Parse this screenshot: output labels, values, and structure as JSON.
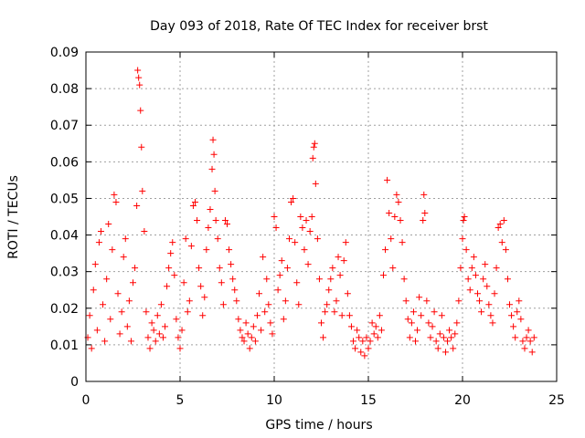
{
  "chart_data": {
    "type": "scatter",
    "title": "Day 093 of 2018, Rate Of TEC Index for receiver brst",
    "xlabel": "GPS time / hours",
    "ylabel": "ROTI / TECUs",
    "xlim": [
      0,
      25
    ],
    "ylim": [
      0,
      0.09
    ],
    "x_ticks": [
      0,
      5,
      10,
      15,
      20,
      25
    ],
    "y_ticks": [
      0,
      0.01,
      0.02,
      0.03,
      0.04,
      0.05,
      0.06,
      0.07,
      0.08,
      0.09
    ],
    "x_tick_labels": [
      "0",
      "5",
      "10",
      "15",
      "20",
      "25"
    ],
    "y_tick_labels": [
      "0",
      "0.01",
      "0.02",
      "0.03",
      "0.04",
      "0.05",
      "0.06",
      "0.07",
      "0.08",
      "0.09"
    ],
    "grid": true,
    "marker": "+",
    "series": [
      {
        "name": "ROTI",
        "color": "#ff0000",
        "points": [
          [
            0.1,
            0.012
          ],
          [
            0.2,
            0.018
          ],
          [
            0.3,
            0.009
          ],
          [
            0.4,
            0.025
          ],
          [
            0.5,
            0.032
          ],
          [
            0.6,
            0.014
          ],
          [
            0.7,
            0.038
          ],
          [
            0.8,
            0.041
          ],
          [
            0.9,
            0.021
          ],
          [
            1.0,
            0.011
          ],
          [
            1.1,
            0.028
          ],
          [
            1.2,
            0.043
          ],
          [
            1.3,
            0.017
          ],
          [
            1.4,
            0.036
          ],
          [
            1.5,
            0.051
          ],
          [
            1.6,
            0.049
          ],
          [
            1.7,
            0.024
          ],
          [
            1.8,
            0.013
          ],
          [
            1.9,
            0.019
          ],
          [
            2.0,
            0.034
          ],
          [
            2.1,
            0.039
          ],
          [
            2.2,
            0.015
          ],
          [
            2.3,
            0.022
          ],
          [
            2.4,
            0.011
          ],
          [
            2.5,
            0.027
          ],
          [
            2.6,
            0.031
          ],
          [
            2.7,
            0.048
          ],
          [
            2.75,
            0.085
          ],
          [
            2.8,
            0.083
          ],
          [
            2.85,
            0.081
          ],
          [
            2.9,
            0.074
          ],
          [
            2.95,
            0.064
          ],
          [
            3.0,
            0.052
          ],
          [
            3.1,
            0.041
          ],
          [
            3.2,
            0.019
          ],
          [
            3.3,
            0.012
          ],
          [
            3.4,
            0.009
          ],
          [
            3.5,
            0.016
          ],
          [
            3.6,
            0.014
          ],
          [
            3.7,
            0.011
          ],
          [
            3.8,
            0.018
          ],
          [
            3.9,
            0.013
          ],
          [
            4.0,
            0.021
          ],
          [
            4.1,
            0.012
          ],
          [
            4.2,
            0.015
          ],
          [
            4.3,
            0.026
          ],
          [
            4.4,
            0.031
          ],
          [
            4.5,
            0.035
          ],
          [
            4.6,
            0.038
          ],
          [
            4.7,
            0.029
          ],
          [
            4.8,
            0.017
          ],
          [
            4.9,
            0.012
          ],
          [
            5.0,
            0.009
          ],
          [
            5.1,
            0.014
          ],
          [
            5.2,
            0.027
          ],
          [
            5.3,
            0.039
          ],
          [
            5.4,
            0.019
          ],
          [
            5.5,
            0.022
          ],
          [
            5.6,
            0.037
          ],
          [
            5.7,
            0.048
          ],
          [
            5.8,
            0.049
          ],
          [
            5.9,
            0.044
          ],
          [
            6.0,
            0.031
          ],
          [
            6.1,
            0.026
          ],
          [
            6.2,
            0.018
          ],
          [
            6.3,
            0.023
          ],
          [
            6.4,
            0.036
          ],
          [
            6.5,
            0.042
          ],
          [
            6.6,
            0.047
          ],
          [
            6.7,
            0.058
          ],
          [
            6.75,
            0.066
          ],
          [
            6.8,
            0.062
          ],
          [
            6.85,
            0.052
          ],
          [
            6.9,
            0.044
          ],
          [
            7.0,
            0.039
          ],
          [
            7.1,
            0.031
          ],
          [
            7.2,
            0.027
          ],
          [
            7.3,
            0.021
          ],
          [
            7.4,
            0.044
          ],
          [
            7.5,
            0.043
          ],
          [
            7.6,
            0.036
          ],
          [
            7.7,
            0.032
          ],
          [
            7.8,
            0.028
          ],
          [
            7.9,
            0.025
          ],
          [
            8.0,
            0.022
          ],
          [
            8.1,
            0.017
          ],
          [
            8.2,
            0.014
          ],
          [
            8.3,
            0.012
          ],
          [
            8.4,
            0.011
          ],
          [
            8.5,
            0.016
          ],
          [
            8.6,
            0.013
          ],
          [
            8.7,
            0.009
          ],
          [
            8.8,
            0.012
          ],
          [
            8.9,
            0.015
          ],
          [
            9.0,
            0.011
          ],
          [
            9.1,
            0.018
          ],
          [
            9.2,
            0.024
          ],
          [
            9.3,
            0.014
          ],
          [
            9.4,
            0.034
          ],
          [
            9.5,
            0.019
          ],
          [
            9.6,
            0.028
          ],
          [
            9.7,
            0.021
          ],
          [
            9.8,
            0.016
          ],
          [
            9.9,
            0.013
          ],
          [
            10.0,
            0.045
          ],
          [
            10.1,
            0.042
          ],
          [
            10.2,
            0.025
          ],
          [
            10.3,
            0.029
          ],
          [
            10.4,
            0.033
          ],
          [
            10.5,
            0.017
          ],
          [
            10.6,
            0.022
          ],
          [
            10.7,
            0.031
          ],
          [
            10.8,
            0.039
          ],
          [
            10.9,
            0.049
          ],
          [
            11.0,
            0.05
          ],
          [
            11.1,
            0.038
          ],
          [
            11.2,
            0.027
          ],
          [
            11.3,
            0.021
          ],
          [
            11.4,
            0.045
          ],
          [
            11.5,
            0.042
          ],
          [
            11.6,
            0.036
          ],
          [
            11.7,
            0.044
          ],
          [
            11.8,
            0.032
          ],
          [
            11.9,
            0.041
          ],
          [
            12.0,
            0.045
          ],
          [
            12.05,
            0.061
          ],
          [
            12.1,
            0.064
          ],
          [
            12.15,
            0.065
          ],
          [
            12.2,
            0.054
          ],
          [
            12.3,
            0.039
          ],
          [
            12.4,
            0.028
          ],
          [
            12.5,
            0.016
          ],
          [
            12.6,
            0.012
          ],
          [
            12.7,
            0.019
          ],
          [
            12.8,
            0.021
          ],
          [
            12.9,
            0.025
          ],
          [
            13.0,
            0.028
          ],
          [
            13.1,
            0.031
          ],
          [
            13.2,
            0.019
          ],
          [
            13.3,
            0.022
          ],
          [
            13.4,
            0.034
          ],
          [
            13.5,
            0.029
          ],
          [
            13.6,
            0.018
          ],
          [
            13.7,
            0.033
          ],
          [
            13.8,
            0.038
          ],
          [
            13.9,
            0.024
          ],
          [
            14.0,
            0.018
          ],
          [
            14.1,
            0.015
          ],
          [
            14.2,
            0.011
          ],
          [
            14.3,
            0.009
          ],
          [
            14.4,
            0.014
          ],
          [
            14.5,
            0.012
          ],
          [
            14.6,
            0.008
          ],
          [
            14.7,
            0.011
          ],
          [
            14.8,
            0.007
          ],
          [
            14.9,
            0.012
          ],
          [
            15.0,
            0.009
          ],
          [
            15.1,
            0.011
          ],
          [
            15.2,
            0.016
          ],
          [
            15.3,
            0.013
          ],
          [
            15.4,
            0.015
          ],
          [
            15.5,
            0.012
          ],
          [
            15.6,
            0.018
          ],
          [
            15.7,
            0.014
          ],
          [
            15.8,
            0.029
          ],
          [
            15.9,
            0.036
          ],
          [
            16.0,
            0.055
          ],
          [
            16.1,
            0.046
          ],
          [
            16.2,
            0.039
          ],
          [
            16.3,
            0.031
          ],
          [
            16.4,
            0.045
          ],
          [
            16.5,
            0.051
          ],
          [
            16.6,
            0.049
          ],
          [
            16.7,
            0.044
          ],
          [
            16.8,
            0.038
          ],
          [
            16.9,
            0.028
          ],
          [
            17.0,
            0.022
          ],
          [
            17.1,
            0.017
          ],
          [
            17.2,
            0.012
          ],
          [
            17.3,
            0.016
          ],
          [
            17.4,
            0.019
          ],
          [
            17.5,
            0.011
          ],
          [
            17.6,
            0.014
          ],
          [
            17.7,
            0.023
          ],
          [
            17.8,
            0.018
          ],
          [
            17.9,
            0.044
          ],
          [
            17.95,
            0.051
          ],
          [
            18.0,
            0.046
          ],
          [
            18.1,
            0.022
          ],
          [
            18.2,
            0.016
          ],
          [
            18.3,
            0.012
          ],
          [
            18.4,
            0.015
          ],
          [
            18.5,
            0.019
          ],
          [
            18.6,
            0.011
          ],
          [
            18.7,
            0.009
          ],
          [
            18.8,
            0.013
          ],
          [
            18.9,
            0.018
          ],
          [
            19.0,
            0.012
          ],
          [
            19.1,
            0.008
          ],
          [
            19.2,
            0.011
          ],
          [
            19.3,
            0.014
          ],
          [
            19.4,
            0.012
          ],
          [
            19.5,
            0.009
          ],
          [
            19.6,
            0.013
          ],
          [
            19.7,
            0.016
          ],
          [
            19.8,
            0.022
          ],
          [
            19.9,
            0.031
          ],
          [
            20.0,
            0.039
          ],
          [
            20.05,
            0.044
          ],
          [
            20.1,
            0.045
          ],
          [
            20.2,
            0.036
          ],
          [
            20.3,
            0.028
          ],
          [
            20.4,
            0.025
          ],
          [
            20.5,
            0.031
          ],
          [
            20.6,
            0.034
          ],
          [
            20.7,
            0.029
          ],
          [
            20.8,
            0.024
          ],
          [
            20.9,
            0.022
          ],
          [
            21.0,
            0.019
          ],
          [
            21.1,
            0.028
          ],
          [
            21.2,
            0.032
          ],
          [
            21.3,
            0.026
          ],
          [
            21.4,
            0.021
          ],
          [
            21.5,
            0.018
          ],
          [
            21.6,
            0.016
          ],
          [
            21.7,
            0.024
          ],
          [
            21.8,
            0.031
          ],
          [
            21.9,
            0.042
          ],
          [
            22.0,
            0.043
          ],
          [
            22.1,
            0.038
          ],
          [
            22.2,
            0.044
          ],
          [
            22.3,
            0.036
          ],
          [
            22.4,
            0.028
          ],
          [
            22.5,
            0.021
          ],
          [
            22.6,
            0.018
          ],
          [
            22.7,
            0.015
          ],
          [
            22.8,
            0.012
          ],
          [
            22.9,
            0.019
          ],
          [
            23.0,
            0.022
          ],
          [
            23.1,
            0.017
          ],
          [
            23.2,
            0.011
          ],
          [
            23.3,
            0.009
          ],
          [
            23.4,
            0.012
          ],
          [
            23.5,
            0.014
          ],
          [
            23.6,
            0.011
          ],
          [
            23.7,
            0.008
          ],
          [
            23.8,
            0.012
          ]
        ]
      }
    ]
  }
}
